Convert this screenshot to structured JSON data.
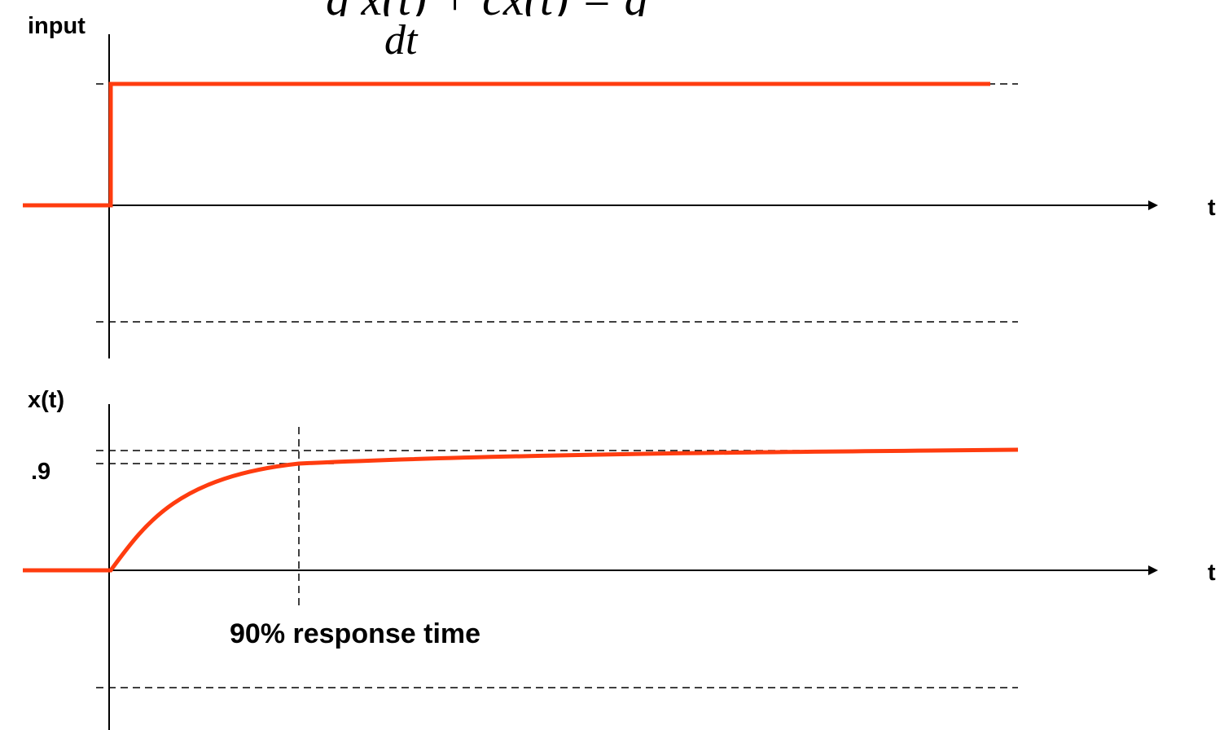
{
  "colors": {
    "signal": "#ff3c0f",
    "axis": "#000000",
    "guide": "#000000",
    "background": "#ffffff"
  },
  "equation": {
    "cut_off_top": "g  x(t) + cx(t) = g",
    "denominator": "dt"
  },
  "top_plot": {
    "y_label": "input",
    "x_label": "t"
  },
  "bottom_plot": {
    "y_label": "x(t)",
    "x_label": "t",
    "tick_label": ".9",
    "annotation": "90% response time",
    "level_fraction": 0.9
  }
}
